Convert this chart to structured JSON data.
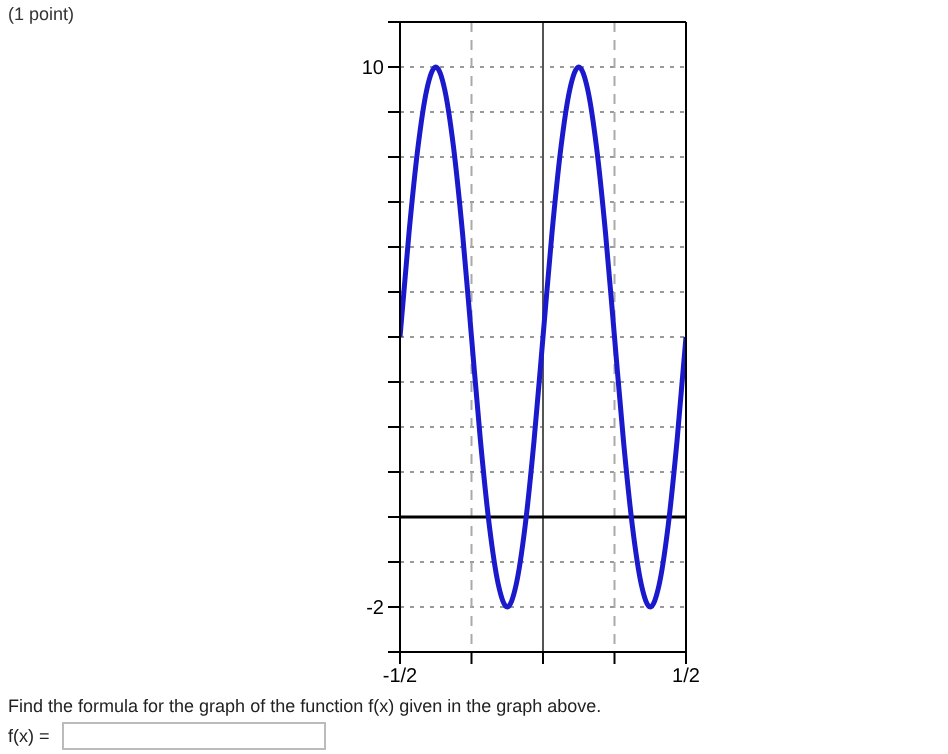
{
  "chart_data": {
    "type": "line",
    "title": "(1 point)",
    "x": [
      -0.5,
      -0.46875,
      -0.4375,
      -0.40625,
      -0.375,
      -0.34375,
      -0.3125,
      -0.28125,
      -0.25,
      -0.21875,
      -0.1875,
      -0.15625,
      -0.125,
      -0.09375,
      -0.0625,
      -0.03125,
      0,
      0.03125,
      0.0625,
      0.09375,
      0.125,
      0.15625,
      0.1875,
      0.21875,
      0.25,
      0.28125,
      0.3125,
      0.34375,
      0.375,
      0.40625,
      0.4375,
      0.46875,
      0.5
    ],
    "series": [
      {
        "color": "#1a1acc",
        "values": [
          4,
          6.3,
          8.2,
          9.5,
          10,
          9.5,
          8.2,
          6.3,
          4,
          1.7,
          -0.2,
          -1.5,
          -2,
          -1.5,
          -0.2,
          1.7,
          4,
          6.3,
          8.2,
          9.5,
          10,
          9.5,
          8.2,
          6.3,
          4,
          1.7,
          -0.2,
          -1.5,
          -2,
          -1.5,
          -0.2,
          1.7,
          4
        ]
      }
    ],
    "xlim": [
      -0.5,
      0.5
    ],
    "xticks": [
      {
        "value": -0.5,
        "label": "-1/2"
      },
      {
        "value": -0.25,
        "label": null
      },
      {
        "value": 0,
        "label": null
      },
      {
        "value": 0.25,
        "label": null
      },
      {
        "value": 0.5,
        "label": "1/2"
      }
    ],
    "ylim": [
      -3,
      11
    ],
    "yticks": [
      {
        "value": -3,
        "label": null
      },
      {
        "value": -2,
        "label": "-2"
      },
      {
        "value": -1,
        "label": null
      },
      {
        "value": 0,
        "label": null
      },
      {
        "value": 1,
        "label": null
      },
      {
        "value": 2,
        "label": null
      },
      {
        "value": 3,
        "label": null
      },
      {
        "value": 4,
        "label": null
      },
      {
        "value": 5,
        "label": null
      },
      {
        "value": 6,
        "label": null
      },
      {
        "value": 7,
        "label": null
      },
      {
        "value": 8,
        "label": null
      },
      {
        "value": 9,
        "label": null
      },
      {
        "value": 10,
        "label": "10"
      },
      {
        "value": 11,
        "label": null
      }
    ],
    "grid": true,
    "marker": "none",
    "line_style": "solid",
    "annotations": [
      "Find the formula for the graph of the function f(x) given in the graph above.",
      "f(x) ="
    ]
  }
}
